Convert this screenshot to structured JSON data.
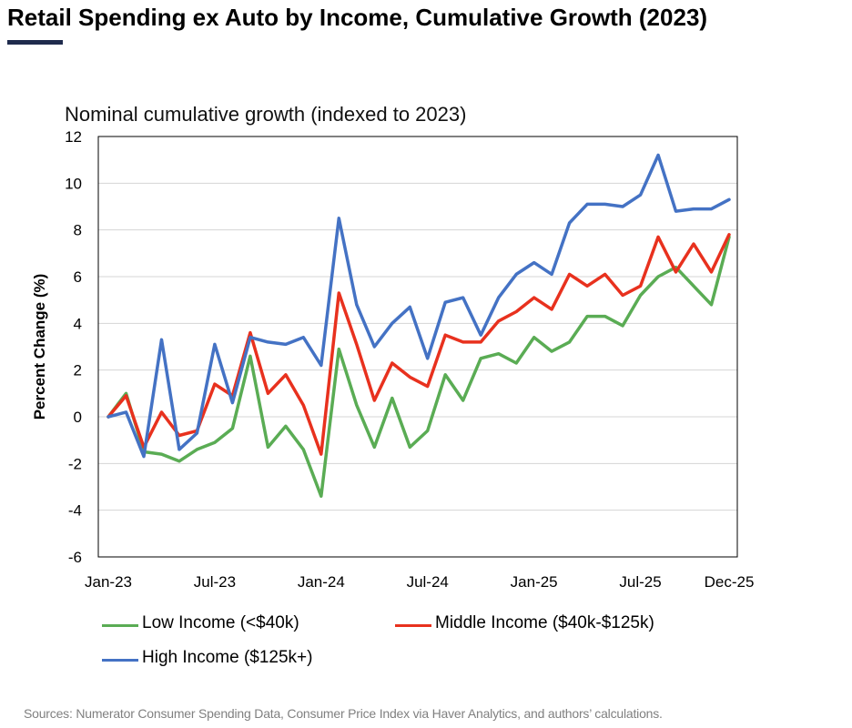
{
  "header": {
    "title": "Retail Spending ex Auto by Income, Cumulative Growth (2023)",
    "subtitle": "Nominal cumulative growth (indexed to 2023)"
  },
  "footer": {
    "source": "Sources: Numerator Consumer Spending Data, Consumer Price Index via Haver Analytics, and authors’ calculations."
  },
  "colors": {
    "low": "#5aac54",
    "middle": "#e8311e",
    "high": "#4472c4",
    "title_rule": "#1f2b4d"
  },
  "chart_data": {
    "type": "line",
    "title": "Nominal cumulative growth (indexed to 2023)",
    "xlabel": "",
    "ylabel": "Percent Change (%)",
    "ylim": [
      -6,
      12
    ],
    "yticks": [
      -6,
      -4,
      -2,
      0,
      2,
      4,
      6,
      8,
      10,
      12
    ],
    "x": [
      "Jan-23",
      "Feb-23",
      "Mar-23",
      "Apr-23",
      "May-23",
      "Jun-23",
      "Jul-23",
      "Aug-23",
      "Sep-23",
      "Oct-23",
      "Nov-23",
      "Dec-23",
      "Jan-24",
      "Feb-24",
      "Mar-24",
      "Apr-24",
      "May-24",
      "Jun-24",
      "Jul-24",
      "Aug-24",
      "Sep-24",
      "Oct-24",
      "Nov-24",
      "Dec-24",
      "Jan-25",
      "Feb-25",
      "Mar-25",
      "Apr-25",
      "May-25",
      "Jun-25",
      "Jul-25",
      "Aug-25",
      "Sep-25",
      "Oct-25",
      "Nov-25",
      "Dec-25"
    ],
    "xtick_labels": [
      {
        "index": 0,
        "label": "Jan-23"
      },
      {
        "index": 6,
        "label": "Jul-23"
      },
      {
        "index": 12,
        "label": "Jan-24"
      },
      {
        "index": 18,
        "label": "Jul-24"
      },
      {
        "index": 24,
        "label": "Jan-25"
      },
      {
        "index": 30,
        "label": "Jul-25"
      },
      {
        "index": 35,
        "label": "Dec-25"
      }
    ],
    "legend_position": "bottom",
    "series": [
      {
        "key": "low",
        "name": "Low Income (<$40k)",
        "values": [
          0,
          1.0,
          -1.5,
          -1.6,
          -1.9,
          -1.4,
          -1.1,
          -0.5,
          2.6,
          -1.3,
          -0.4,
          -1.4,
          -3.4,
          2.9,
          0.5,
          -1.3,
          0.8,
          -1.3,
          -0.6,
          1.8,
          0.7,
          2.5,
          2.7,
          2.3,
          3.4,
          2.8,
          3.2,
          4.3,
          4.3,
          3.9,
          5.2,
          6.0,
          6.4,
          5.6,
          4.8,
          7.7
        ]
      },
      {
        "key": "middle",
        "name": "Middle Income ($40k-$125k)",
        "values": [
          0,
          0.9,
          -1.3,
          0.2,
          -0.8,
          -0.6,
          1.4,
          0.9,
          3.6,
          1.0,
          1.8,
          0.5,
          -1.6,
          5.3,
          3.1,
          0.7,
          2.3,
          1.7,
          1.3,
          3.5,
          3.2,
          3.2,
          4.1,
          4.5,
          5.1,
          4.6,
          6.1,
          5.6,
          6.1,
          5.2,
          5.6,
          7.7,
          6.2,
          7.4,
          6.2,
          7.8
        ]
      },
      {
        "key": "high",
        "name": "High Income ($125k+)",
        "values": [
          0,
          0.2,
          -1.7,
          3.3,
          -1.4,
          -0.7,
          3.1,
          0.6,
          3.4,
          3.2,
          3.1,
          3.4,
          2.2,
          8.5,
          4.8,
          3.0,
          4.0,
          4.7,
          2.5,
          4.9,
          5.1,
          3.5,
          5.1,
          6.1,
          6.6,
          6.1,
          8.3,
          9.1,
          9.1,
          9.0,
          9.5,
          11.2,
          8.8,
          8.9,
          8.9,
          9.3
        ]
      }
    ]
  }
}
